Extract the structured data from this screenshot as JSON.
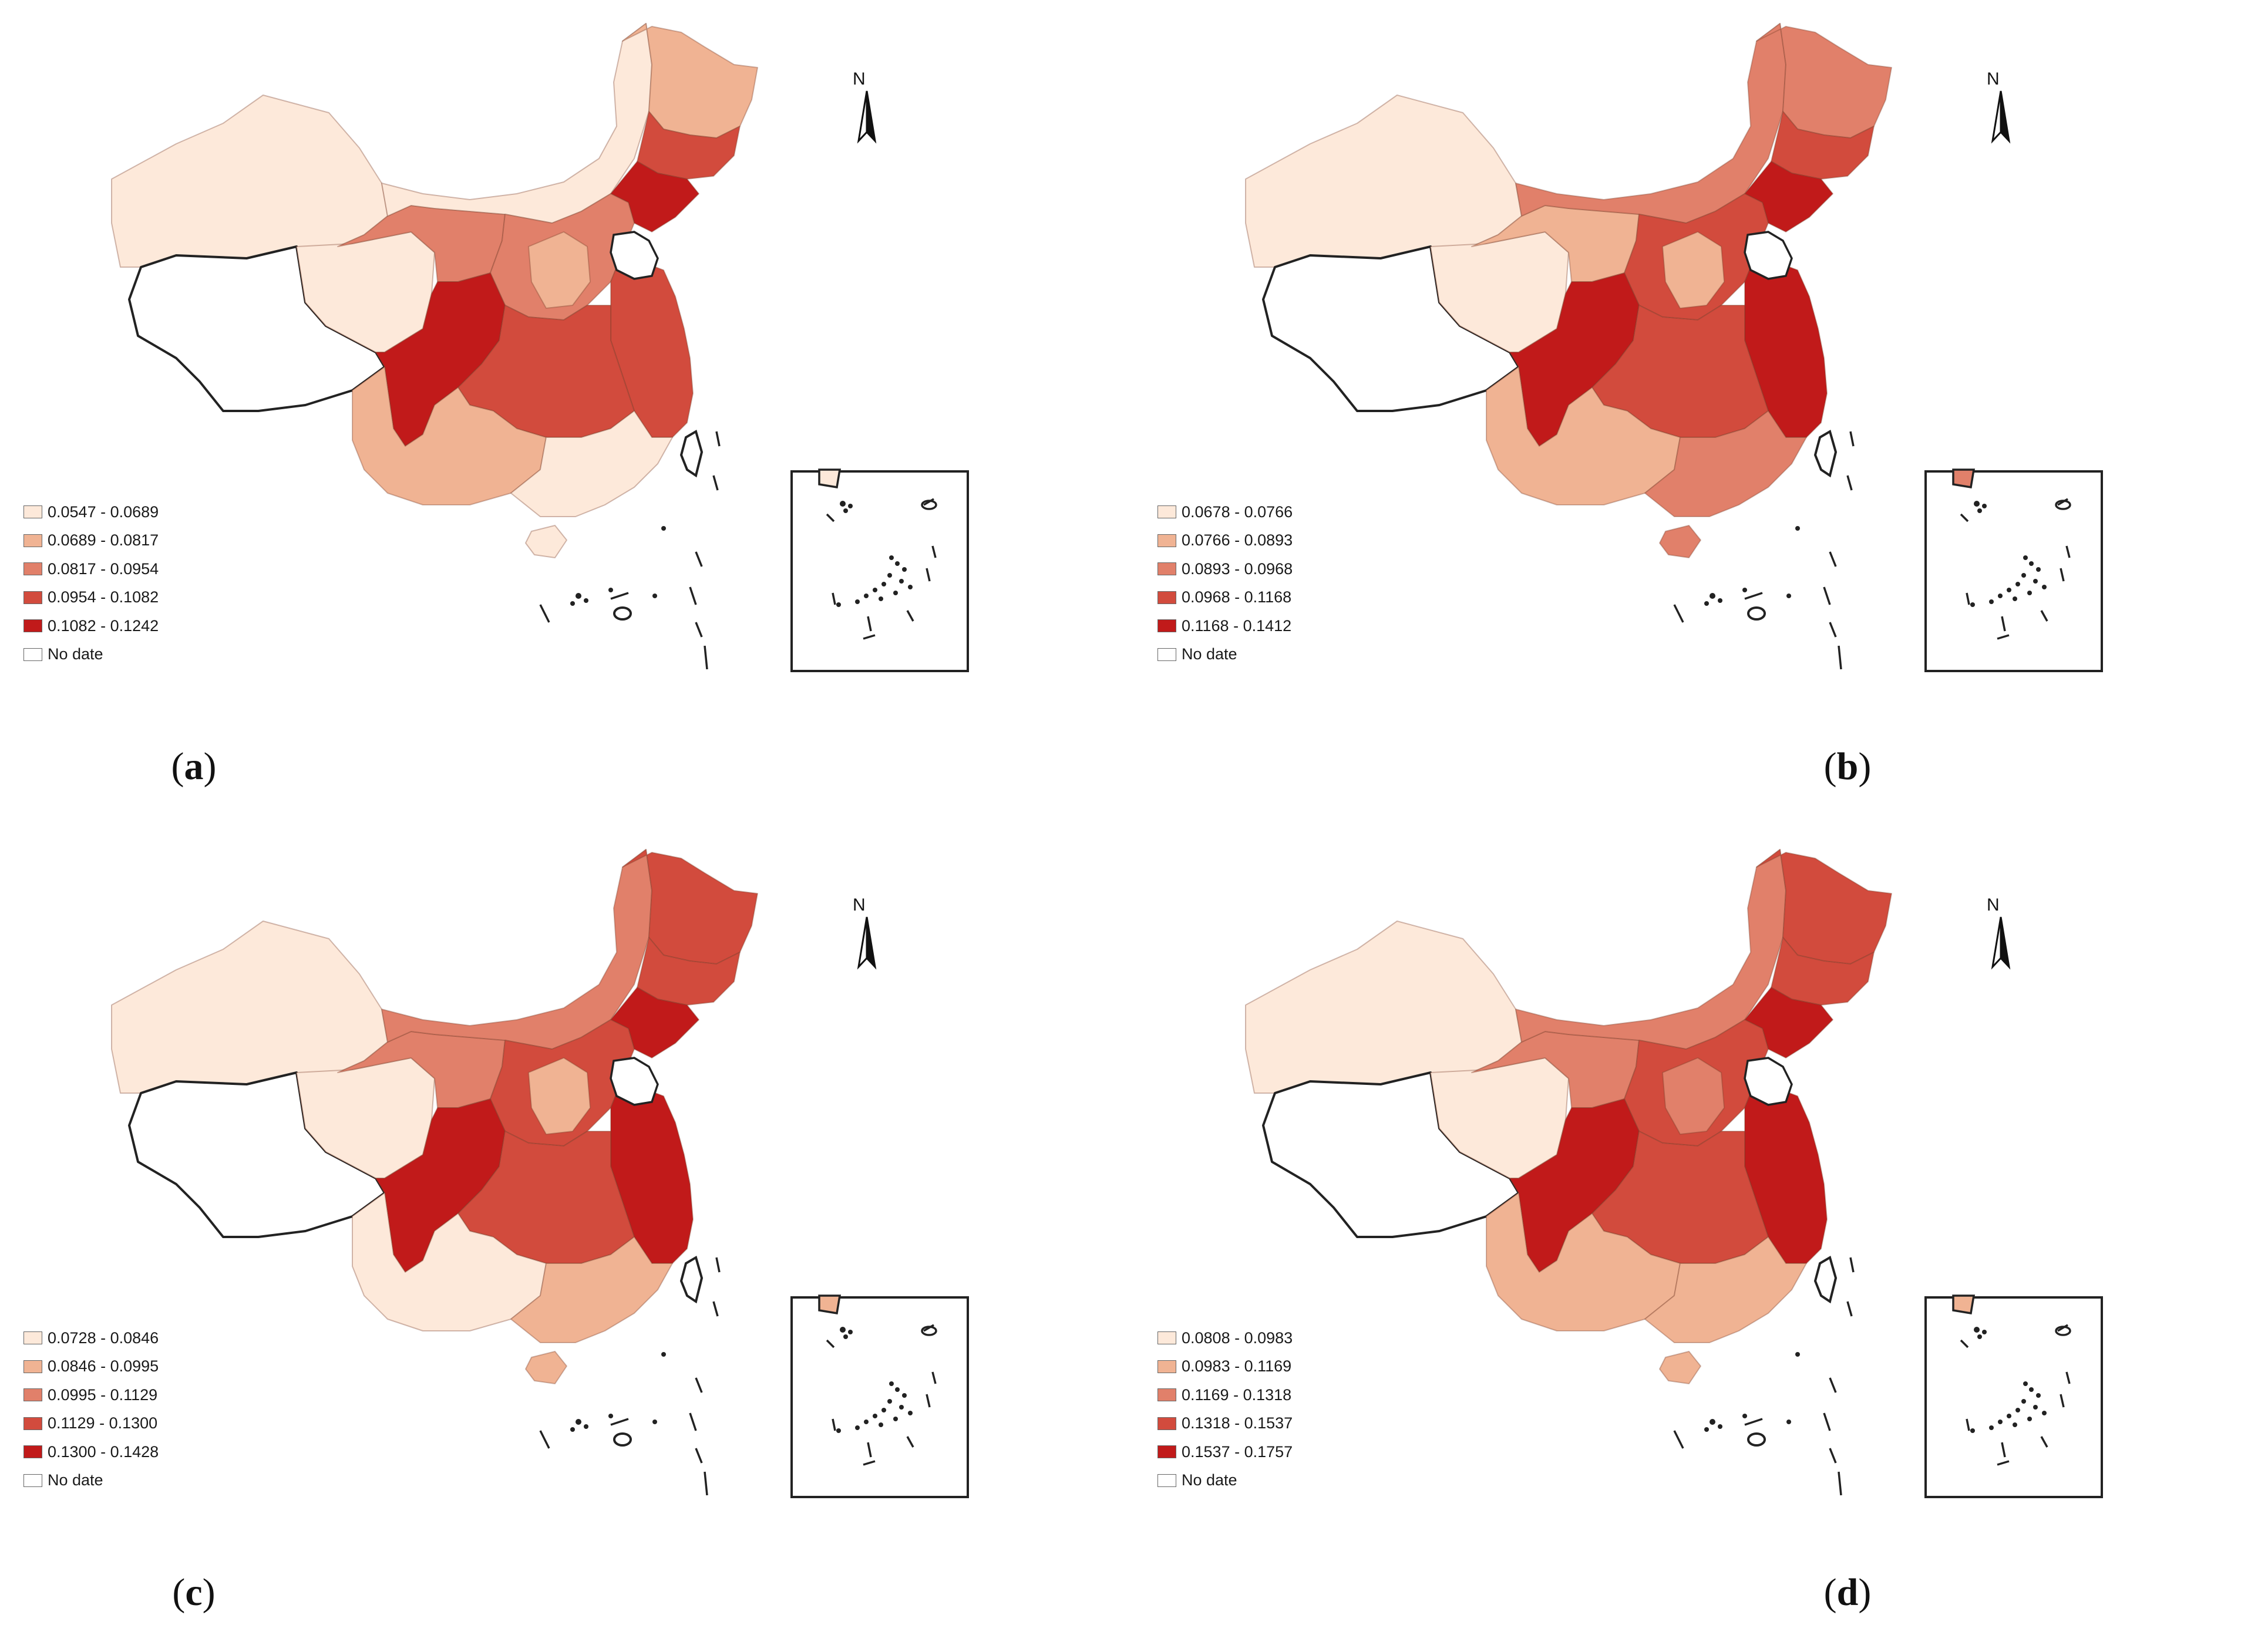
{
  "colors": {
    "class1": "#fde9da",
    "class2": "#f0b393",
    "class3": "#e1806a",
    "class4": "#d24b3d",
    "class5": "#c11a1a",
    "nodata": "#ffffff",
    "outline": "#222222"
  },
  "compass": {
    "north_label": "N"
  },
  "nodata_label": "No date",
  "panels": [
    {
      "caption_open": "(",
      "letter": "a",
      "caption_close": ")",
      "legend": [
        "0.0547 - 0.0689",
        "0.0689 - 0.0817",
        "0.0817 - 0.0954",
        "0.0954 - 0.1082",
        "0.1082 - 0.1242"
      ],
      "regions": {
        "xinjiang": 1,
        "tibet": 0,
        "qinghai": 1,
        "gansu": 3,
        "inner_mongolia": 1,
        "heilongjiang": 2,
        "jilin": 4,
        "liaoning": 5,
        "north_china": 3,
        "central_north": 2,
        "east_coast": 4,
        "sichuan": 5,
        "central": 4,
        "yunnan_guizhou": 2,
        "south_coast": 1
      }
    },
    {
      "caption_open": "(",
      "letter": "b",
      "caption_close": ")",
      "legend": [
        "0.0678 - 0.0766",
        "0.0766 - 0.0893",
        "0.0893 - 0.0968",
        "0.0968 - 0.1168",
        "0.1168 - 0.1412"
      ],
      "regions": {
        "xinjiang": 1,
        "tibet": 0,
        "qinghai": 1,
        "gansu": 2,
        "inner_mongolia": 3,
        "heilongjiang": 3,
        "jilin": 4,
        "liaoning": 5,
        "north_china": 4,
        "central_north": 2,
        "east_coast": 5,
        "sichuan": 5,
        "central": 4,
        "yunnan_guizhou": 2,
        "south_coast": 3
      }
    },
    {
      "caption_open": "(",
      "letter": "c",
      "caption_close": ")",
      "legend": [
        "0.0728 - 0.0846",
        "0.0846 - 0.0995",
        "0.0995 - 0.1129",
        "0.1129 - 0.1300",
        "0.1300 - 0.1428"
      ],
      "regions": {
        "xinjiang": 1,
        "tibet": 0,
        "qinghai": 1,
        "gansu": 3,
        "inner_mongolia": 3,
        "heilongjiang": 4,
        "jilin": 4,
        "liaoning": 5,
        "north_china": 4,
        "central_north": 2,
        "east_coast": 5,
        "sichuan": 5,
        "central": 4,
        "yunnan_guizhou": 1,
        "south_coast": 2
      }
    },
    {
      "caption_open": "(",
      "letter": "d",
      "caption_close": ")",
      "legend": [
        "0.0808 - 0.0983",
        "0.0983 - 0.1169",
        "0.1169 - 0.1318",
        "0.1318 - 0.1537",
        "0.1537 - 0.1757"
      ],
      "regions": {
        "xinjiang": 1,
        "tibet": 0,
        "qinghai": 1,
        "gansu": 3,
        "inner_mongolia": 3,
        "heilongjiang": 4,
        "jilin": 4,
        "liaoning": 5,
        "north_china": 4,
        "central_north": 3,
        "east_coast": 5,
        "sichuan": 5,
        "central": 4,
        "yunnan_guizhou": 2,
        "south_coast": 2
      }
    }
  ]
}
